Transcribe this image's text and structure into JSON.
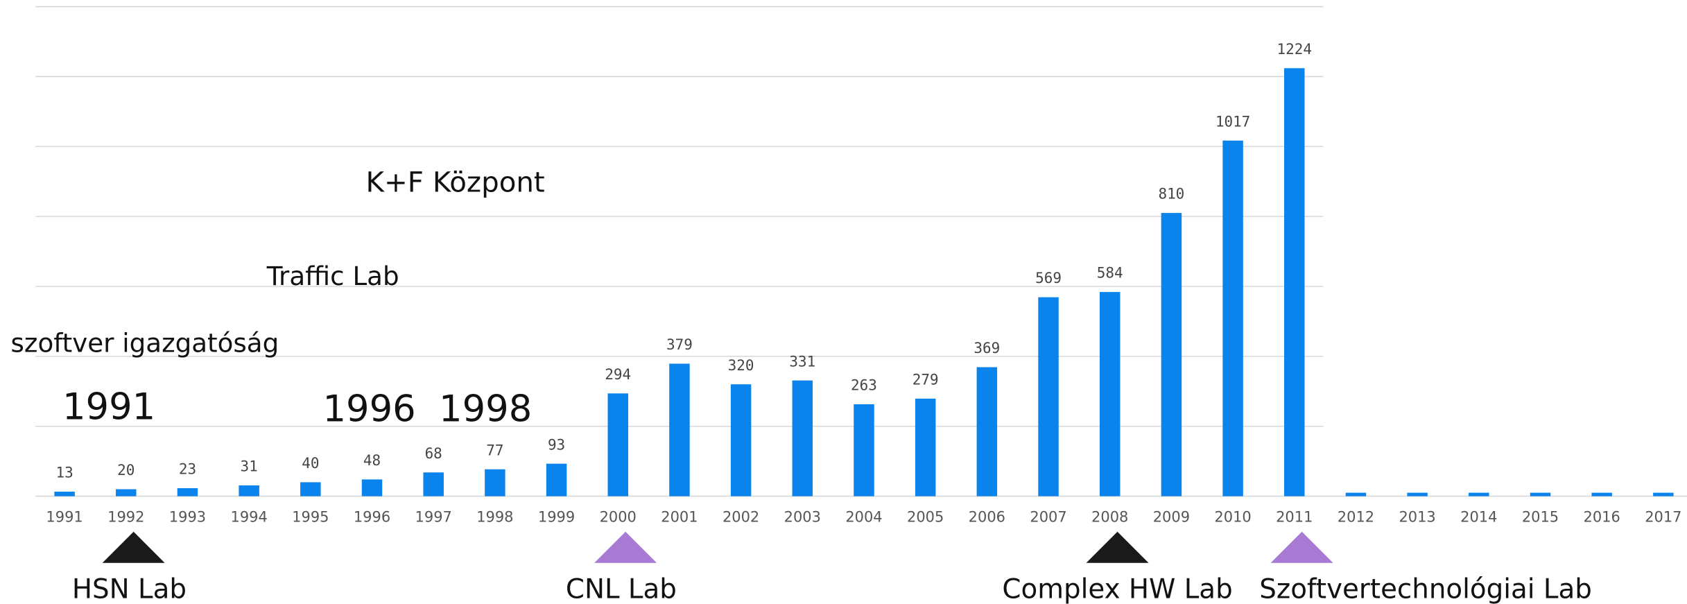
{
  "chart_data": {
    "type": "bar",
    "categories": [
      "1991",
      "1992",
      "1993",
      "1994",
      "1995",
      "1996",
      "1997",
      "1998",
      "1999",
      "2000",
      "2001",
      "2002",
      "2003",
      "2004",
      "2005",
      "2006",
      "2007",
      "2008",
      "2009",
      "2010",
      "2011",
      "2012",
      "2013",
      "2014",
      "2015",
      "2016",
      "2017"
    ],
    "values": [
      13,
      20,
      23,
      31,
      40,
      48,
      68,
      77,
      93,
      294,
      379,
      320,
      331,
      263,
      279,
      369,
      569,
      584,
      810,
      1017,
      1224,
      10,
      10,
      10,
      10,
      10,
      10
    ],
    "value_labels": [
      "13",
      "20",
      "23",
      "31",
      "40",
      "48",
      "68",
      "77",
      "93",
      "294",
      "379",
      "320",
      "331",
      "263",
      "279",
      "369",
      "569",
      "584",
      "810",
      "1017",
      "1224",
      null,
      null,
      null,
      null,
      null,
      null
    ],
    "color": "#0a84ec",
    "ylim": [
      0,
      1400
    ],
    "yticks": [
      0,
      200,
      400,
      600,
      800,
      1000,
      1200,
      1400
    ],
    "grid": true,
    "annotations": [
      "K+F Központ",
      "Traffic Lab",
      "szoftver igazgatóság",
      "1991",
      "1996",
      "1998"
    ],
    "milestones": [
      {
        "category": "1992",
        "label": "HSN Lab",
        "color": "#1a1a1a"
      },
      {
        "category": "2000",
        "label": "CNL Lab",
        "color": "#a97ad4"
      },
      {
        "category": "2008",
        "label": "Complex HW Lab",
        "color": "#1a1a1a"
      },
      {
        "category": "2011",
        "label": "Szoftvertechnológiai Lab",
        "color": "#a97ad4"
      }
    ]
  }
}
